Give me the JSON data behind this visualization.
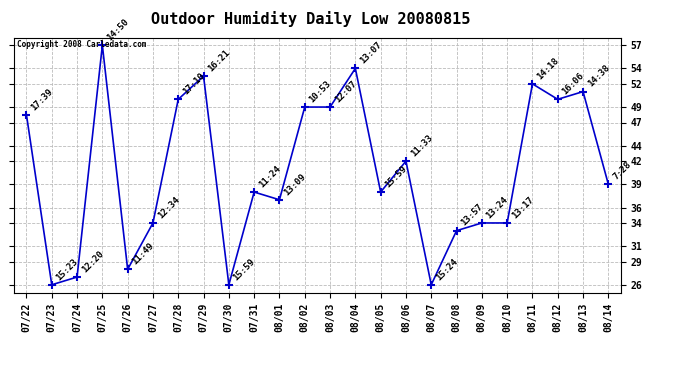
{
  "title": "Outdoor Humidity Daily Low 20080815",
  "copyright": "Copyright 2008 Carledata.com",
  "x_labels": [
    "07/22",
    "07/23",
    "07/24",
    "07/25",
    "07/26",
    "07/27",
    "07/28",
    "07/29",
    "07/30",
    "07/31",
    "08/01",
    "08/02",
    "08/03",
    "08/04",
    "08/05",
    "08/06",
    "08/07",
    "08/08",
    "08/09",
    "08/10",
    "08/11",
    "08/12",
    "08/13",
    "08/14"
  ],
  "y_values": [
    48,
    26,
    27,
    57,
    28,
    34,
    50,
    53,
    26,
    38,
    37,
    49,
    49,
    54,
    38,
    42,
    26,
    33,
    34,
    34,
    52,
    50,
    51,
    39
  ],
  "time_labels": [
    "17:39",
    "15:23",
    "12:20",
    "14:50",
    "11:49",
    "12:34",
    "17:10",
    "16:21",
    "15:59",
    "11:24",
    "13:09",
    "10:53",
    "12:07",
    "13:07",
    "15:59",
    "11:33",
    "15:24",
    "13:57",
    "13:24",
    "13:17",
    "14:18",
    "16:06",
    "14:38",
    "7:28"
  ],
  "ylim": [
    25,
    58
  ],
  "yticks": [
    26,
    29,
    31,
    34,
    36,
    39,
    42,
    44,
    47,
    49,
    52,
    54,
    57
  ],
  "line_color": "#0000cc",
  "marker": "+",
  "marker_size": 6,
  "marker_color": "#0000cc",
  "bg_color": "#ffffff",
  "grid_color": "#bbbbbb",
  "title_fontsize": 11,
  "label_fontsize": 7,
  "annotation_fontsize": 6.5
}
